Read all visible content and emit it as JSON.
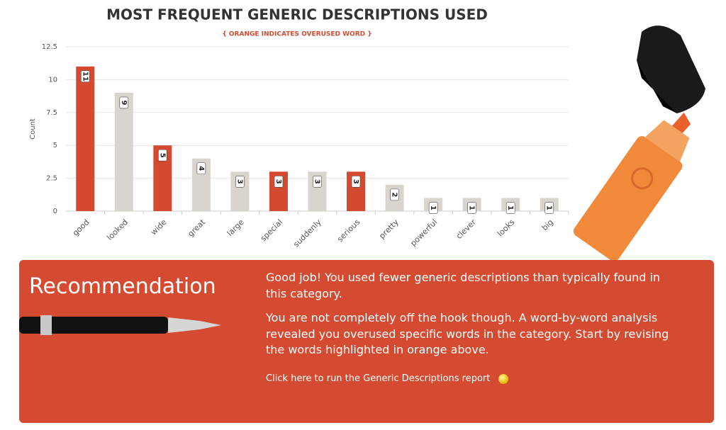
{
  "chart_data": {
    "type": "bar",
    "title": "MOST FREQUENT GENERIC DESCRIPTIONS USED",
    "subtitle": "{ ORANGE INDICATES OVERUSED WORD }",
    "y_label": "Count",
    "categories": [
      "good",
      "looked",
      "wide",
      "great",
      "large",
      "special",
      "suddenly",
      "serious",
      "pretty",
      "powerful",
      "clever",
      "looks",
      "big"
    ],
    "values": [
      11,
      9,
      5,
      4,
      3,
      3,
      3,
      3,
      2,
      1,
      1,
      1,
      1
    ],
    "colors": [
      "#d34a30",
      "#d8d5ce",
      "#d34a30",
      "#d8d5ce",
      "#d8d5ce",
      "#d34a30",
      "#d8d5ce",
      "#d34a30",
      "#d8d5ce",
      "#d8d5ce",
      "#d8d5ce",
      "#d8d5ce",
      "#d8d5ce"
    ],
    "ylim": [
      0,
      12.5
    ],
    "yticks": [
      0,
      2.5,
      5,
      7.5,
      10,
      12.5
    ],
    "grid": true
  },
  "recommendation": {
    "heading": "Recommendation",
    "paragraphs": [
      "Good job! You used fewer generic descriptions than typically found in this category.",
      "You are not completely off the hook though. A word-by-word analysis revealed you overused specific words in the category. Start by revising the words highlighted in orange above."
    ],
    "link": "Click here to run the Generic Descriptions report"
  }
}
